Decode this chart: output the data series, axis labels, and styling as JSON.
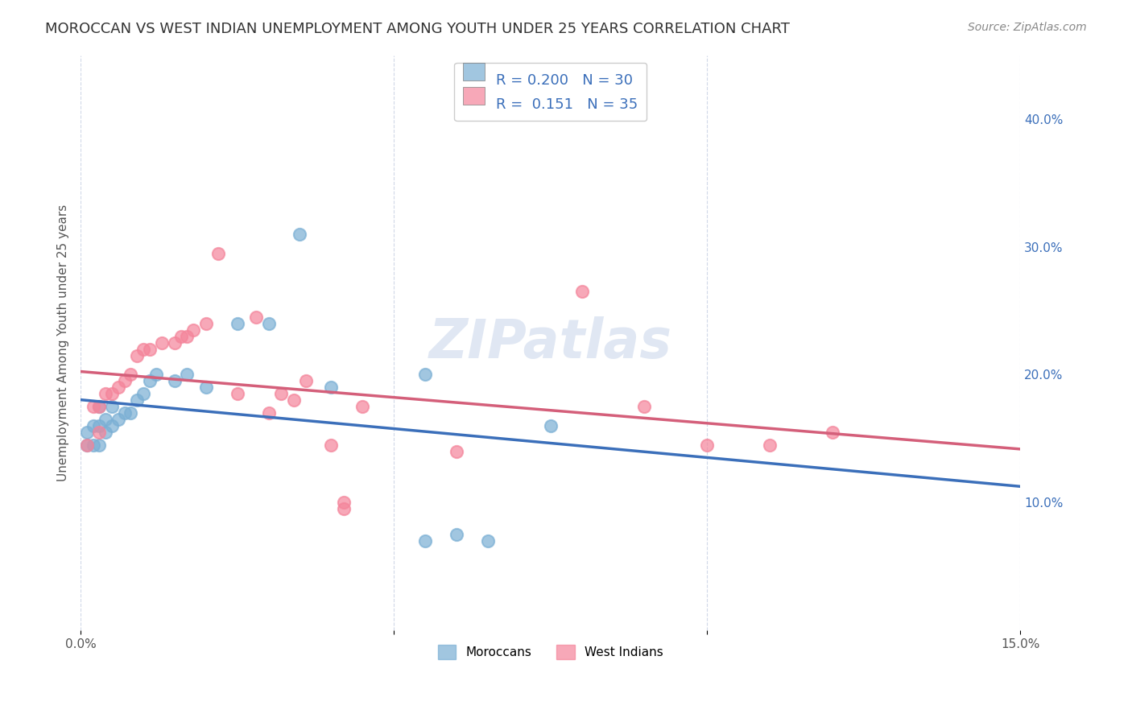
{
  "title": "MOROCCAN VS WEST INDIAN UNEMPLOYMENT AMONG YOUTH UNDER 25 YEARS CORRELATION CHART",
  "source": "Source: ZipAtlas.com",
  "xlabel_bottom": "",
  "ylabel": "Unemployment Among Youth under 25 years",
  "xlim": [
    0,
    0.15
  ],
  "ylim": [
    0,
    0.45
  ],
  "xticks": [
    0.0,
    0.05,
    0.1,
    0.15
  ],
  "xticklabels": [
    "0.0%",
    "",
    "",
    "15.0%"
  ],
  "yticks_right": [
    0.1,
    0.2,
    0.3,
    0.4
  ],
  "ytick_labels_right": [
    "10.0%",
    "20.0%",
    "30.0%",
    "40.0%"
  ],
  "legend_entries": [
    {
      "label": "R = 0.200   N = 30",
      "color": "#aec6e8"
    },
    {
      "label": "R =  0.151   N = 35",
      "color": "#f4b8c1"
    }
  ],
  "moroccan_color": "#7aafd4",
  "west_indian_color": "#f4849a",
  "moroccan_line_color": "#3b6fba",
  "west_indian_line_color": "#d45f7a",
  "watermark": "ZIPatlas",
  "moroccan_points": [
    [
      0.001,
      0.145
    ],
    [
      0.002,
      0.145
    ],
    [
      0.003,
      0.145
    ],
    [
      0.004,
      0.155
    ],
    [
      0.001,
      0.155
    ],
    [
      0.002,
      0.16
    ],
    [
      0.003,
      0.16
    ],
    [
      0.005,
      0.16
    ],
    [
      0.004,
      0.165
    ],
    [
      0.006,
      0.165
    ],
    [
      0.007,
      0.17
    ],
    [
      0.008,
      0.17
    ],
    [
      0.003,
      0.175
    ],
    [
      0.005,
      0.175
    ],
    [
      0.009,
      0.18
    ],
    [
      0.01,
      0.185
    ],
    [
      0.011,
      0.195
    ],
    [
      0.012,
      0.2
    ],
    [
      0.015,
      0.195
    ],
    [
      0.017,
      0.2
    ],
    [
      0.02,
      0.19
    ],
    [
      0.025,
      0.24
    ],
    [
      0.03,
      0.24
    ],
    [
      0.035,
      0.31
    ],
    [
      0.04,
      0.19
    ],
    [
      0.055,
      0.2
    ],
    [
      0.055,
      0.07
    ],
    [
      0.06,
      0.075
    ],
    [
      0.065,
      0.07
    ],
    [
      0.075,
      0.16
    ]
  ],
  "west_indian_points": [
    [
      0.001,
      0.145
    ],
    [
      0.002,
      0.175
    ],
    [
      0.003,
      0.175
    ],
    [
      0.004,
      0.185
    ],
    [
      0.005,
      0.185
    ],
    [
      0.006,
      0.19
    ],
    [
      0.007,
      0.195
    ],
    [
      0.008,
      0.2
    ],
    [
      0.009,
      0.215
    ],
    [
      0.01,
      0.22
    ],
    [
      0.011,
      0.22
    ],
    [
      0.013,
      0.225
    ],
    [
      0.015,
      0.225
    ],
    [
      0.016,
      0.23
    ],
    [
      0.017,
      0.23
    ],
    [
      0.018,
      0.235
    ],
    [
      0.02,
      0.24
    ],
    [
      0.022,
      0.295
    ],
    [
      0.028,
      0.245
    ],
    [
      0.03,
      0.17
    ],
    [
      0.032,
      0.185
    ],
    [
      0.034,
      0.18
    ],
    [
      0.036,
      0.195
    ],
    [
      0.04,
      0.145
    ],
    [
      0.042,
      0.1
    ],
    [
      0.042,
      0.095
    ],
    [
      0.06,
      0.14
    ],
    [
      0.08,
      0.265
    ],
    [
      0.09,
      0.175
    ],
    [
      0.1,
      0.145
    ],
    [
      0.11,
      0.145
    ],
    [
      0.12,
      0.155
    ],
    [
      0.003,
      0.155
    ],
    [
      0.025,
      0.185
    ],
    [
      0.045,
      0.175
    ]
  ],
  "moroccan_R": 0.2,
  "moroccan_N": 30,
  "west_indian_R": 0.151,
  "west_indian_N": 35,
  "background_color": "#ffffff",
  "grid_color": "#d0d8e8",
  "title_fontsize": 13,
  "source_fontsize": 10,
  "axis_label_fontsize": 11,
  "tick_fontsize": 11,
  "watermark_color": "#ccd8ec",
  "watermark_fontsize": 48
}
